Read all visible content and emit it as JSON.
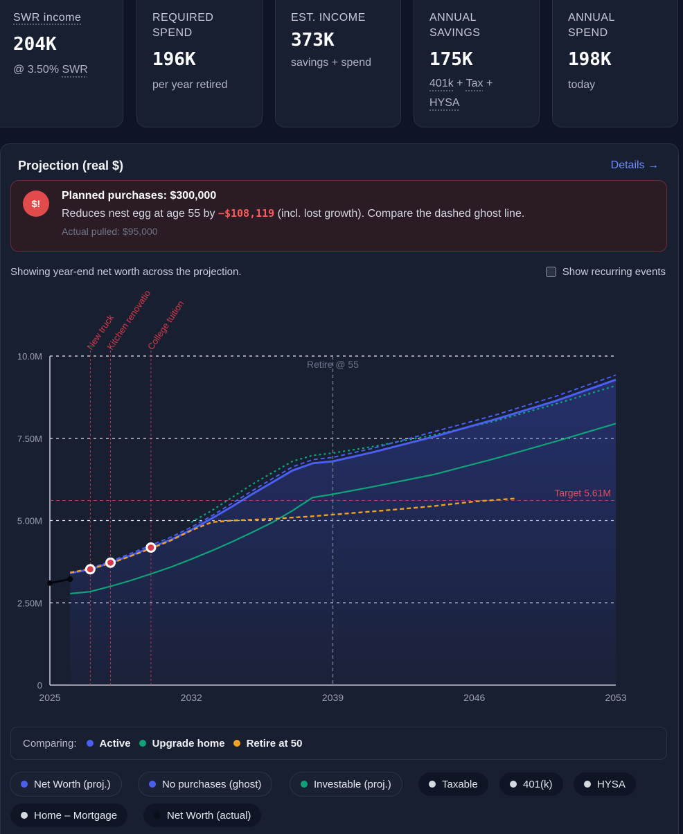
{
  "cards": [
    {
      "label_lines": [
        "SWR income"
      ],
      "value": "204K",
      "sub_prefix": "@ 3.50% ",
      "sub_link": "SWR"
    },
    {
      "label_lines": [
        "REQUIRED",
        "SPEND"
      ],
      "value": "196K",
      "sub": "per year retired"
    },
    {
      "label_lines": [
        "EST. INCOME"
      ],
      "value": "373K",
      "sub": "savings + spend"
    },
    {
      "label_lines": [
        "ANNUAL",
        "SAVINGS"
      ],
      "value": "175K",
      "sub_parts": [
        "401k",
        " + ",
        "Tax",
        " + ",
        "HYSA"
      ]
    },
    {
      "label_lines": [
        "ANNUAL",
        "SPEND"
      ],
      "value": "198K",
      "sub": "today"
    }
  ],
  "panel": {
    "title": "Projection (real $)",
    "details_label": "Details →"
  },
  "alert": {
    "icon_text": "$!",
    "title": "Planned purchases: $300,000",
    "body_prefix": "Reduces nest egg at age 55 by ",
    "body_amount": "−$108,119",
    "body_suffix": " (incl. lost growth). Compare the dashed ghost line.",
    "muted": "Actual pulled: $95,000"
  },
  "caption": "Showing year-end net worth across the projection.",
  "recurring_toggle": "Show recurring events",
  "colors": {
    "active": "#4a5ff0",
    "upgrade_home": "#10a37a",
    "retire_50": "#f0a023",
    "target": "#e14b5e",
    "event": "#d83a4a"
  },
  "chart_data": {
    "type": "line",
    "x_ticks": [
      "2025",
      "2032",
      "2039",
      "2046",
      "2053"
    ],
    "y_ticks": [
      "0",
      "2.50M",
      "5.00M",
      "7.50M",
      "10.0M"
    ],
    "xlim": [
      2025,
      2053
    ],
    "ylim": [
      0,
      10
    ],
    "y_unit": "M",
    "target": {
      "label": "Target 5.61M",
      "value": 5.61
    },
    "retire_marker": {
      "label": "Retire @ 55",
      "x": 2039
    },
    "events": [
      {
        "label": "New truck",
        "x": 2027
      },
      {
        "label": "Kitchen renovatio",
        "x": 2028
      },
      {
        "label": "College tuition",
        "x": 2030
      }
    ],
    "series": [
      {
        "name": "Net Worth (proj.)",
        "style": "solid",
        "area": true,
        "points": [
          [
            2026,
            3.4
          ],
          [
            2027,
            3.52
          ],
          [
            2028,
            3.72
          ],
          [
            2029,
            3.94
          ],
          [
            2030,
            4.18
          ],
          [
            2031,
            4.42
          ],
          [
            2032,
            4.72
          ],
          [
            2033,
            5.06
          ],
          [
            2034,
            5.42
          ],
          [
            2035,
            5.8
          ],
          [
            2036,
            6.16
          ],
          [
            2037,
            6.52
          ],
          [
            2038,
            6.74
          ],
          [
            2039,
            6.8
          ],
          [
            2041,
            7.08
          ],
          [
            2044,
            7.55
          ],
          [
            2047,
            8.07
          ],
          [
            2050,
            8.63
          ],
          [
            2053,
            9.28
          ]
        ]
      },
      {
        "name": "No purchases (ghost)",
        "style": "dashed",
        "points": [
          [
            2026,
            3.4
          ],
          [
            2027,
            3.55
          ],
          [
            2028,
            3.76
          ],
          [
            2029,
            4.0
          ],
          [
            2030,
            4.25
          ],
          [
            2031,
            4.5
          ],
          [
            2032,
            4.8
          ],
          [
            2033,
            5.14
          ],
          [
            2034,
            5.52
          ],
          [
            2035,
            5.9
          ],
          [
            2036,
            6.27
          ],
          [
            2037,
            6.63
          ],
          [
            2038,
            6.85
          ],
          [
            2039,
            6.92
          ],
          [
            2041,
            7.2
          ],
          [
            2044,
            7.7
          ],
          [
            2047,
            8.2
          ],
          [
            2050,
            8.77
          ],
          [
            2053,
            9.42
          ]
        ]
      },
      {
        "name": "Investable (proj.)",
        "style": "solid",
        "points": [
          [
            2026,
            2.78
          ],
          [
            2027,
            2.84
          ],
          [
            2028,
            3.0
          ],
          [
            2029,
            3.18
          ],
          [
            2030,
            3.38
          ],
          [
            2031,
            3.59
          ],
          [
            2032,
            3.83
          ],
          [
            2033,
            4.08
          ],
          [
            2034,
            4.35
          ],
          [
            2035,
            4.64
          ],
          [
            2036,
            4.94
          ],
          [
            2037,
            5.3
          ],
          [
            2038,
            5.7
          ],
          [
            2039,
            5.8
          ],
          [
            2041,
            6.03
          ],
          [
            2044,
            6.4
          ],
          [
            2047,
            6.88
          ],
          [
            2050,
            7.4
          ],
          [
            2053,
            7.95
          ]
        ]
      },
      {
        "name": "Upgrade home",
        "style": "dotted",
        "points": [
          [
            2032,
            4.95
          ],
          [
            2033,
            5.3
          ],
          [
            2034,
            5.7
          ],
          [
            2035,
            6.1
          ],
          [
            2036,
            6.45
          ],
          [
            2037,
            6.8
          ],
          [
            2038,
            6.98
          ],
          [
            2039,
            7.05
          ],
          [
            2041,
            7.25
          ],
          [
            2044,
            7.6
          ],
          [
            2047,
            8.02
          ],
          [
            2050,
            8.54
          ],
          [
            2053,
            9.1
          ]
        ]
      },
      {
        "name": "Retire at 50",
        "style": "dashed",
        "points": [
          [
            2026,
            3.42
          ],
          [
            2027,
            3.53
          ],
          [
            2028,
            3.7
          ],
          [
            2029,
            3.92
          ],
          [
            2030,
            4.15
          ],
          [
            2031,
            4.4
          ],
          [
            2032,
            4.7
          ],
          [
            2033,
            4.95
          ],
          [
            2034,
            5.0
          ],
          [
            2036,
            5.05
          ],
          [
            2038,
            5.13
          ],
          [
            2040,
            5.23
          ],
          [
            2042,
            5.33
          ],
          [
            2044,
            5.44
          ],
          [
            2046,
            5.58
          ],
          [
            2048,
            5.67
          ]
        ]
      },
      {
        "name": "Net Worth (actual)",
        "style": "solid",
        "points": [
          [
            2025,
            3.1
          ],
          [
            2026,
            3.22
          ]
        ]
      }
    ]
  },
  "comparing": {
    "label": "Comparing:",
    "items": [
      "Active",
      "Upgrade home",
      "Retire at 50"
    ]
  },
  "legend_chips": [
    {
      "label": "Net Worth (proj.)",
      "color": "#4a5ff0",
      "on": true
    },
    {
      "label": "No purchases (ghost)",
      "color": "#4a5ff0",
      "on": true
    },
    {
      "label": "Investable (proj.)",
      "color": "#10a37a",
      "on": true
    },
    {
      "label": "Taxable",
      "color": "#d6d9e0",
      "on": false
    },
    {
      "label": "401(k)",
      "color": "#d6d9e0",
      "on": false
    },
    {
      "label": "HYSA",
      "color": "#d6d9e0",
      "on": false
    },
    {
      "label": "Home – Mortgage",
      "color": "#d6d9e0",
      "on": false
    },
    {
      "label": "Net Worth (actual)",
      "color": "#0b0f1a",
      "on": false
    }
  ]
}
